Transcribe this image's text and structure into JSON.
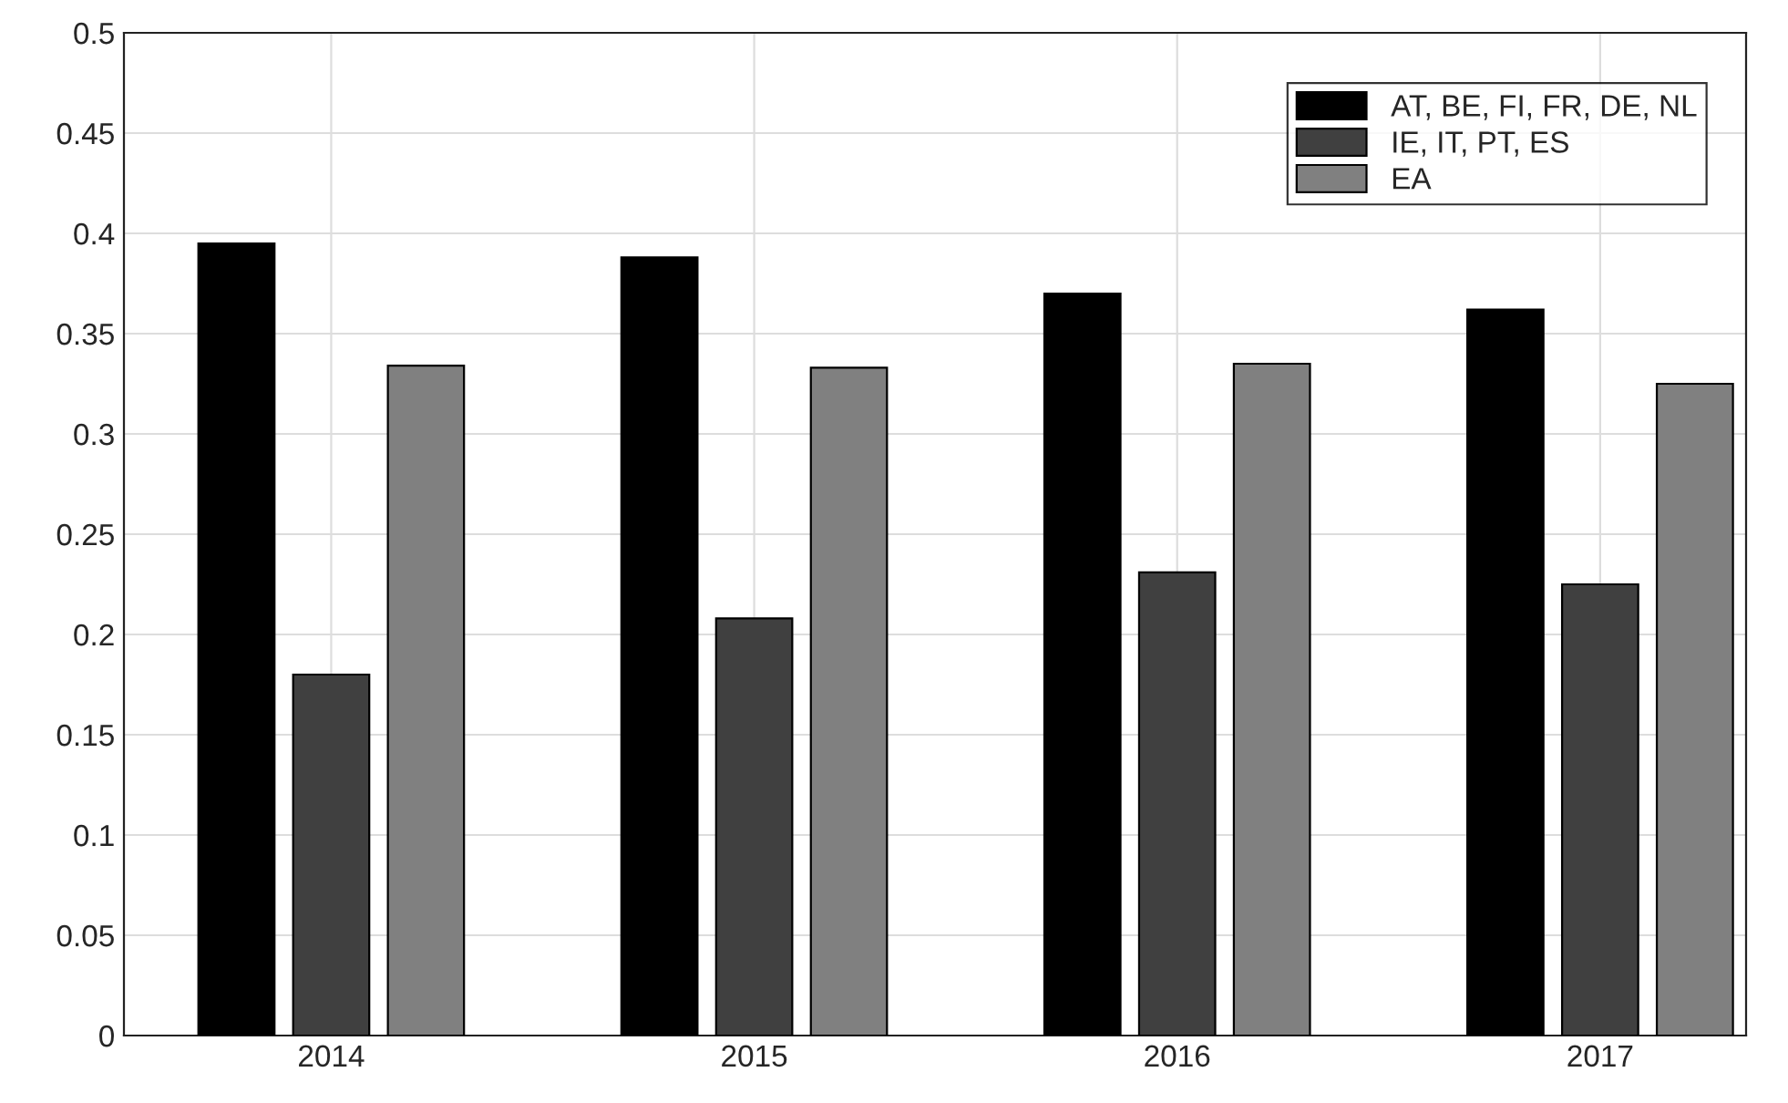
{
  "chart_data": {
    "type": "bar",
    "categories": [
      "2014",
      "2015",
      "2016",
      "2017"
    ],
    "series": [
      {
        "name": "AT, BE, FI, FR, DE, NL",
        "color": "#000000",
        "values": [
          0.395,
          0.388,
          0.37,
          0.362
        ]
      },
      {
        "name": "IE, IT, PT, ES",
        "color": "#404040",
        "values": [
          0.18,
          0.208,
          0.231,
          0.225
        ]
      },
      {
        "name": "EA",
        "color": "#808080",
        "values": [
          0.334,
          0.333,
          0.335,
          0.325
        ]
      }
    ],
    "ylim": [
      0,
      0.5
    ],
    "yticks": [
      0,
      0.05,
      0.1,
      0.15,
      0.2,
      0.25,
      0.3,
      0.35,
      0.4,
      0.45,
      0.5
    ],
    "grid": true,
    "legend": "top right"
  }
}
